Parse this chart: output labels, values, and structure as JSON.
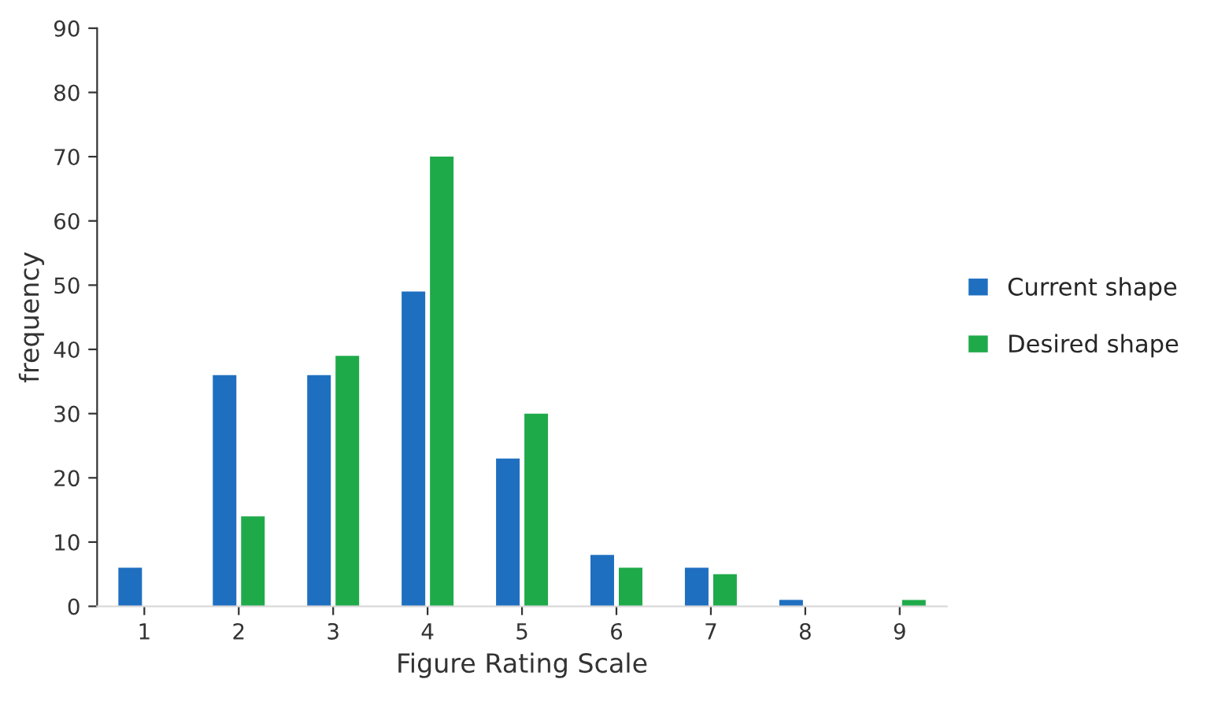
{
  "chart_data": {
    "type": "bar",
    "xlabel": "Figure Rating Scale",
    "ylabel": "frequency",
    "categories": [
      "1",
      "2",
      "3",
      "4",
      "5",
      "6",
      "7",
      "8",
      "9"
    ],
    "series": [
      {
        "name": "Current shape",
        "color": "#1f6fc0",
        "values": [
          6,
          36,
          36,
          49,
          23,
          8,
          6,
          1,
          null
        ]
      },
      {
        "name": "Desired shape",
        "color": "#1faa4a",
        "values": [
          null,
          14,
          39,
          70,
          30,
          6,
          5,
          null,
          1
        ]
      }
    ],
    "ylim": [
      0,
      90
    ],
    "yticks": [
      0,
      10,
      20,
      30,
      40,
      50,
      60,
      70,
      80,
      90
    ],
    "legend": "right",
    "grid": false
  }
}
